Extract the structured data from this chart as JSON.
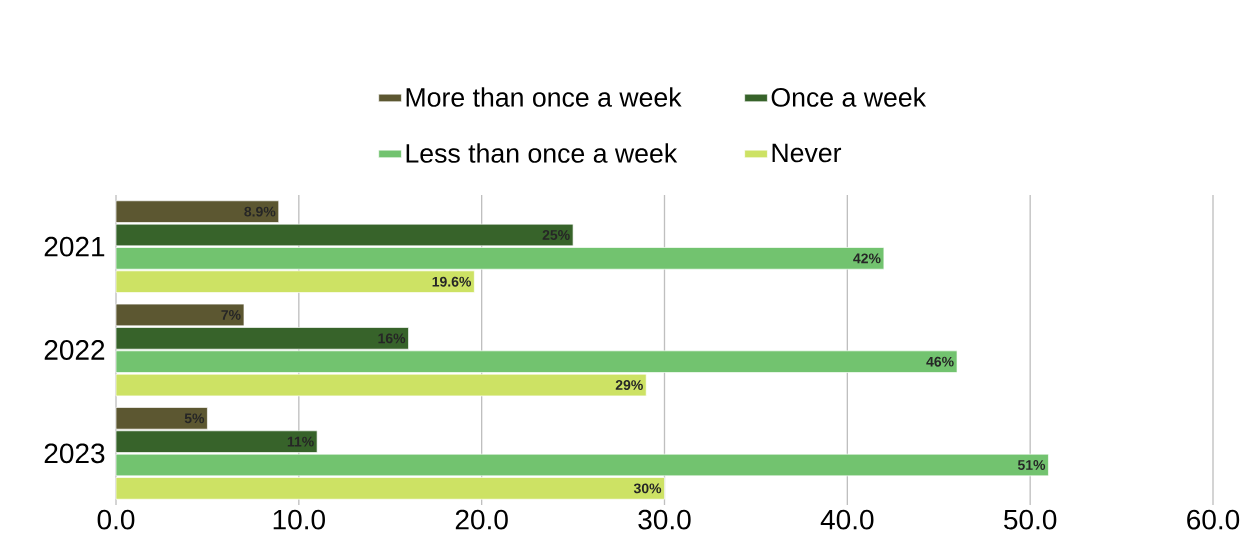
{
  "chart_data": {
    "type": "bar",
    "orientation": "horizontal",
    "categories": [
      "2021",
      "2022",
      "2023"
    ],
    "series": [
      {
        "name": "More than once a week",
        "color": "#5c5731",
        "values": [
          8.9,
          7,
          5
        ],
        "value_labels": [
          "8.9%",
          "7%",
          "5%"
        ]
      },
      {
        "name": "Once a week",
        "color": "#37632a",
        "values": [
          25,
          16,
          11
        ],
        "value_labels": [
          "25%",
          "16%",
          "11%"
        ]
      },
      {
        "name": "Less than once a week",
        "color": "#72c36f",
        "values": [
          42,
          46,
          51
        ],
        "value_labels": [
          "42%",
          "46%",
          "51%"
        ]
      },
      {
        "name": "Never",
        "color": "#cde264",
        "values": [
          19.6,
          29,
          30
        ],
        "value_labels": [
          "19.6%",
          "29%",
          "30%"
        ]
      }
    ],
    "xlim": [
      0,
      60
    ],
    "xticks": [
      {
        "value": 0,
        "label": "0.0"
      },
      {
        "value": 10,
        "label": "10.0"
      },
      {
        "value": 20,
        "label": "20.0"
      },
      {
        "value": 30,
        "label": "30.0"
      },
      {
        "value": 40,
        "label": "40.0"
      },
      {
        "value": 50,
        "label": "50.0"
      },
      {
        "value": 60,
        "label": "60.0"
      }
    ],
    "grid": "x",
    "legend": "top"
  }
}
